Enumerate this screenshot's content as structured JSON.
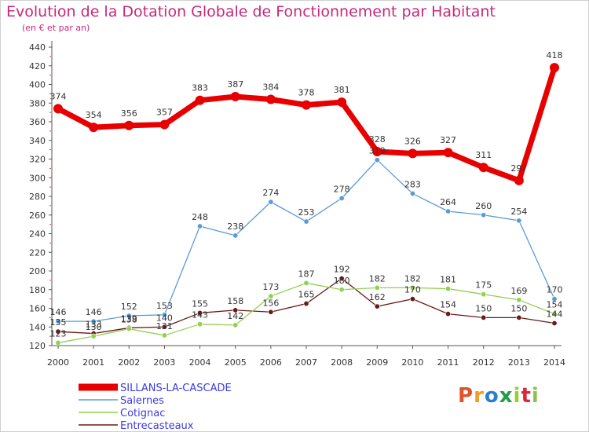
{
  "header": {
    "title": "Evolution de la Dotation Globale de Fonctionnement par Habitant",
    "subtitle": "(en € et par an)"
  },
  "logo": {
    "text": "Proxiti",
    "colors": [
      "#e0522a",
      "#f29b1d",
      "#2a7fd1",
      "#1e9c4a",
      "#9acd32",
      "#d9283a",
      "#8bc34a"
    ]
  },
  "chart_data": {
    "type": "line",
    "x": [
      "2000",
      "2001",
      "2002",
      "2003",
      "2004",
      "2005",
      "2006",
      "2007",
      "2008",
      "2009",
      "2010",
      "2011",
      "2012",
      "2013",
      "2014"
    ],
    "ylim": [
      120,
      440
    ],
    "yticks": [
      120,
      140,
      160,
      180,
      200,
      220,
      240,
      260,
      280,
      300,
      320,
      340,
      360,
      380,
      400,
      420,
      440
    ],
    "grid": false,
    "legend_position": "bottom-left",
    "series": [
      {
        "name": "SILLANS-LA-CASCADE",
        "color": "#e80000",
        "values": [
          374,
          354,
          356,
          357,
          383,
          387,
          384,
          378,
          381,
          328,
          326,
          327,
          311,
          297,
          418
        ],
        "labels": [
          "374",
          "354",
          "356",
          "357",
          "383",
          "387",
          "384",
          "378",
          "381",
          "328",
          "326",
          "327",
          "311",
          "297",
          "418"
        ]
      },
      {
        "name": "Salernes",
        "color": "#5b9bd5",
        "values": [
          146,
          146,
          152,
          153,
          248,
          238,
          274,
          253,
          278,
          319,
          283,
          264,
          260,
          254,
          170
        ],
        "labels": [
          "146",
          "146",
          "152",
          "153",
          "248",
          "238",
          "274",
          "253",
          "278",
          "319",
          "283",
          "264",
          "260",
          "254",
          "170"
        ]
      },
      {
        "name": "Cotignac",
        "color": "#92d050",
        "values": [
          123,
          130,
          138,
          131,
          143,
          142,
          173,
          187,
          180,
          182,
          182,
          181,
          175,
          169,
          154
        ],
        "labels": [
          "123",
          "130",
          "138",
          "131",
          "143",
          "142",
          "173",
          "187",
          "180",
          "182",
          "182",
          "181",
          "175",
          "169",
          "154"
        ]
      },
      {
        "name": "Entrecasteaux",
        "color": "#6b1a1a",
        "values": [
          135,
          133,
          139,
          140,
          155,
          158,
          156,
          165,
          192,
          162,
          170,
          154,
          150,
          150,
          144
        ],
        "labels": [
          "135",
          "133",
          "139",
          "140",
          "155",
          "158",
          "156",
          "165",
          "192",
          "162",
          "170",
          "154",
          "150",
          "150",
          "144"
        ]
      }
    ]
  }
}
